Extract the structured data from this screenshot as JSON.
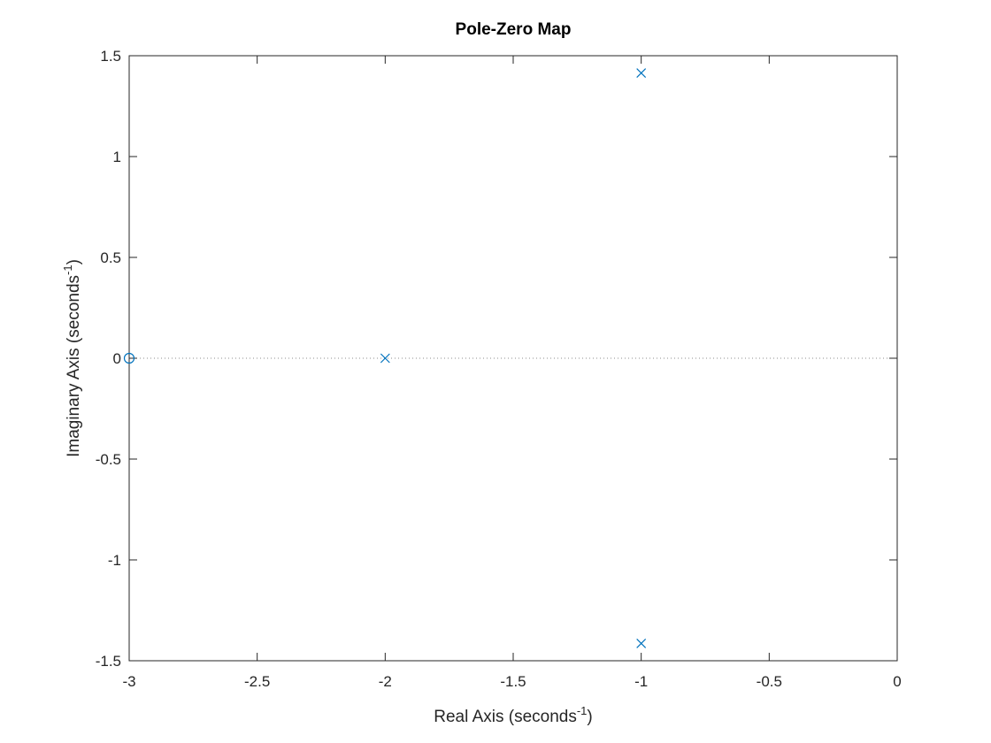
{
  "chart_data": {
    "type": "scatter",
    "title": "Pole-Zero Map",
    "xlabel": "Real Axis (seconds",
    "xlabel_sup": "-1",
    "xlabel_suffix": ")",
    "ylabel": "Imaginary Axis (seconds",
    "ylabel_sup": "-1",
    "ylabel_suffix": ")",
    "xlim": [
      -3,
      0
    ],
    "ylim": [
      -1.5,
      1.5
    ],
    "xticks": [
      -3,
      -2.5,
      -2,
      -1.5,
      -1,
      -0.5,
      0
    ],
    "xtick_labels": [
      "-3",
      "-2.5",
      "-2",
      "-1.5",
      "-1",
      "-0.5",
      "0"
    ],
    "yticks": [
      -1.5,
      -1,
      -0.5,
      0,
      0.5,
      1,
      1.5
    ],
    "ytick_labels": [
      "-1.5",
      "-1",
      "-0.5",
      "0",
      "0.5",
      "1",
      "1.5"
    ],
    "grid": false,
    "series": [
      {
        "marker": "x",
        "points": [
          [
            -1,
            1.414
          ],
          [
            -1,
            -1.414
          ],
          [
            -2,
            0
          ]
        ]
      },
      {
        "marker": "o",
        "points": [
          [
            -3,
            0
          ]
        ]
      }
    ],
    "reference_line": {
      "y": 0,
      "style": "dotted"
    },
    "marker_color": "#0072BD",
    "axis_color": "#262626"
  }
}
